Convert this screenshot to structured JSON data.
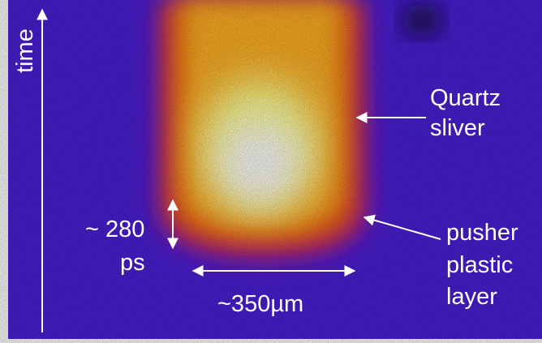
{
  "annotations": {
    "time": "time",
    "quartz": [
      "Quartz",
      "sliver"
    ],
    "duration": [
      "~ 280",
      "ps"
    ],
    "width": "~350µm",
    "pusher": [
      "pusher",
      "plastic",
      "layer"
    ]
  }
}
